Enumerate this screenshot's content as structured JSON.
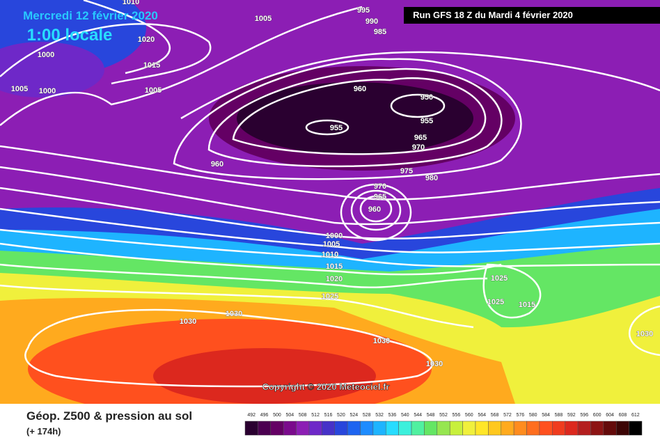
{
  "header": {
    "date": "Mercredi 12 février 2020",
    "time": "1:00 locale",
    "run": "Run GFS 18 Z du Mardi 4 février 2020"
  },
  "copyright": "Copyright © 2020 Meteociel.fr",
  "legend": {
    "title": "Géop. Z500 & pression au sol",
    "subtitle": "(+ 174h)",
    "scale": [
      492,
      496,
      500,
      504,
      508,
      512,
      516,
      520,
      524,
      528,
      532,
      536,
      540,
      544,
      548,
      552,
      556,
      560,
      564,
      568,
      572,
      576,
      580,
      584,
      588,
      592,
      596,
      600,
      604,
      608,
      612
    ],
    "colors": [
      "#2a0030",
      "#4b0050",
      "#640064",
      "#7a0a8c",
      "#8c1eb4",
      "#6e28c8",
      "#4632c8",
      "#2846dc",
      "#1e64f0",
      "#1e8cff",
      "#1eb4ff",
      "#28dcff",
      "#3cf0dc",
      "#50f0a0",
      "#64e664",
      "#96e650",
      "#c8f03c",
      "#f0f03c",
      "#ffe628",
      "#ffc81e",
      "#ffaa1e",
      "#ff8c1e",
      "#ff6e1e",
      "#ff501e",
      "#f03c1e",
      "#dc281e",
      "#b41e1e",
      "#8c1414",
      "#640a0a",
      "#3c0505",
      "#000000"
    ]
  },
  "isobar_labels": [
    1010,
    1005,
    995,
    990,
    985,
    1020,
    1000,
    1015,
    1005,
    1000,
    1005,
    960,
    950,
    955,
    955,
    965,
    970,
    960,
    975,
    980,
    970,
    965,
    960,
    1000,
    1005,
    1010,
    1015,
    1020,
    1025,
    1025,
    1025,
    1015,
    1030,
    1030,
    1030,
    1030,
    1030
  ]
}
